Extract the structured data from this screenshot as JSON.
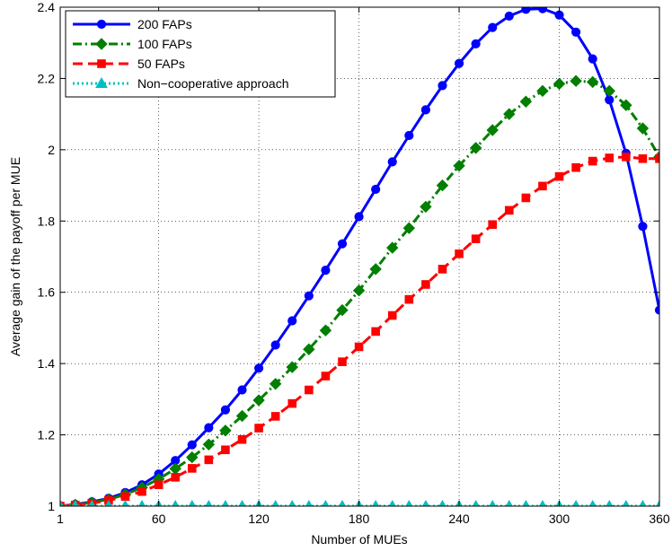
{
  "chart_data": {
    "type": "line",
    "xlabel": "Number of MUEs",
    "ylabel": "Average gain of the payoff per MUE",
    "xlim": [
      1,
      360
    ],
    "ylim": [
      1,
      2.4
    ],
    "x_ticks": [
      "1",
      "60",
      "120",
      "180",
      "240",
      "300",
      "360"
    ],
    "y_ticks": [
      "1",
      "1.2",
      "1.4",
      "1.6",
      "1.8",
      "2",
      "2.2",
      "2.4"
    ],
    "grid": true,
    "legend_position": "top-left",
    "x": [
      1,
      10,
      20,
      30,
      40,
      50,
      60,
      70,
      80,
      90,
      100,
      110,
      120,
      130,
      140,
      150,
      160,
      170,
      180,
      190,
      200,
      210,
      220,
      230,
      240,
      250,
      260,
      270,
      280,
      290,
      300,
      310,
      320,
      330,
      340,
      350,
      360
    ],
    "series": [
      {
        "name": "200 FAPs",
        "color": "#0000ff",
        "line_style": "solid",
        "marker": "circle",
        "values": [
          1.0,
          1.005,
          1.012,
          1.022,
          1.038,
          1.06,
          1.09,
          1.128,
          1.172,
          1.22,
          1.27,
          1.326,
          1.387,
          1.452,
          1.52,
          1.59,
          1.662,
          1.736,
          1.812,
          1.889,
          1.966,
          2.04,
          2.112,
          2.18,
          2.242,
          2.297,
          2.343,
          2.375,
          2.394,
          2.396,
          2.378,
          2.33,
          2.255,
          2.14,
          1.99,
          1.785,
          1.55
        ]
      },
      {
        "name": "100 FAPs",
        "color": "#007f00",
        "line_style": "dash-dot",
        "marker": "diamond",
        "values": [
          1.0,
          1.004,
          1.01,
          1.019,
          1.033,
          1.052,
          1.076,
          1.105,
          1.137,
          1.173,
          1.212,
          1.253,
          1.297,
          1.343,
          1.39,
          1.44,
          1.493,
          1.55,
          1.605,
          1.665,
          1.725,
          1.78,
          1.84,
          1.9,
          1.955,
          2.005,
          2.055,
          2.1,
          2.135,
          2.165,
          2.185,
          2.193,
          2.19,
          2.165,
          2.125,
          2.06,
          1.98
        ]
      },
      {
        "name": "50 FAPs",
        "color": "#ff0000",
        "line_style": "dashed",
        "marker": "square",
        "values": [
          1.0,
          1.003,
          1.008,
          1.016,
          1.027,
          1.041,
          1.06,
          1.081,
          1.106,
          1.13,
          1.158,
          1.187,
          1.219,
          1.252,
          1.288,
          1.326,
          1.365,
          1.405,
          1.447,
          1.49,
          1.535,
          1.58,
          1.622,
          1.665,
          1.708,
          1.75,
          1.79,
          1.83,
          1.865,
          1.898,
          1.925,
          1.95,
          1.968,
          1.977,
          1.98,
          1.975,
          1.975
        ]
      },
      {
        "name": "Non−cooperative approach",
        "color": "#00bfbf",
        "line_style": "dotted",
        "marker": "triangle",
        "values": [
          1.0,
          1.0,
          1.0,
          1.0,
          1.0,
          1.0,
          1.0,
          1.0,
          1.0,
          1.0,
          1.0,
          1.0,
          1.0,
          1.0,
          1.0,
          1.0,
          1.0,
          1.0,
          1.0,
          1.0,
          1.0,
          1.0,
          1.0,
          1.0,
          1.0,
          1.0,
          1.0,
          1.0,
          1.0,
          1.0,
          1.0,
          1.0,
          1.0,
          1.0,
          1.0,
          1.0,
          1.0
        ]
      }
    ]
  }
}
